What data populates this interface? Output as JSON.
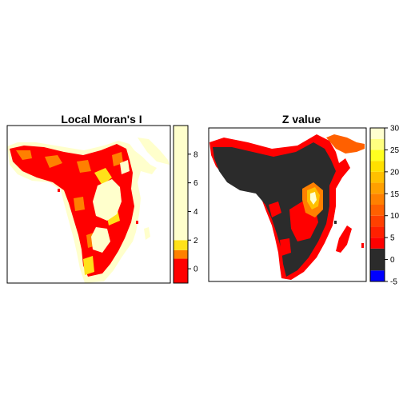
{
  "chart_data": [
    {
      "type": "heatmap",
      "title": "Local Moran's I",
      "legend": {
        "placement": "right",
        "ticks": [
          0,
          2,
          4,
          6,
          8
        ],
        "tick_labels": [
          "0",
          "2",
          "4",
          "6",
          "8"
        ],
        "range": [
          -1,
          10
        ],
        "bands": [
          {
            "from": -1,
            "to": 0.7,
            "color": "#ff0000"
          },
          {
            "from": 0.7,
            "to": 1.3,
            "color": "#ff8000"
          },
          {
            "from": 1.3,
            "to": 2.0,
            "color": "#ffe119"
          },
          {
            "from": 2.0,
            "to": 10,
            "color": "#ffffcc"
          }
        ]
      },
      "palette": {
        "low": "#ff0000",
        "mid_low": "#ff8000",
        "mid": "#ffe119",
        "high": "#ffffcc"
      }
    },
    {
      "type": "heatmap",
      "title": "Z value",
      "legend": {
        "placement": "right",
        "ticks": [
          -5,
          0,
          5,
          10,
          15,
          20,
          25,
          30
        ],
        "tick_labels": [
          "-5",
          "0",
          "5",
          "10",
          "15",
          "20",
          "25",
          "30"
        ],
        "range": [
          -5,
          30
        ],
        "bands": [
          {
            "from": -5,
            "to": -2.5,
            "color": "#0000ff"
          },
          {
            "from": -2.5,
            "to": 2.5,
            "color": "#2b2b2b"
          },
          {
            "from": 2.5,
            "to": 5,
            "color": "#ff0000"
          },
          {
            "from": 5,
            "to": 7.5,
            "color": "#ff2000"
          },
          {
            "from": 7.5,
            "to": 10,
            "color": "#ff4000"
          },
          {
            "from": 10,
            "to": 12.5,
            "color": "#ff6000"
          },
          {
            "from": 12.5,
            "to": 15,
            "color": "#ff8000"
          },
          {
            "from": 15,
            "to": 17.5,
            "color": "#ffa000"
          },
          {
            "from": 17.5,
            "to": 20,
            "color": "#ffc000"
          },
          {
            "from": 20,
            "to": 22.5,
            "color": "#ffe000"
          },
          {
            "from": 22.5,
            "to": 25,
            "color": "#ffff20"
          },
          {
            "from": 25,
            "to": 27.5,
            "color": "#ffff80"
          },
          {
            "from": 27.5,
            "to": 30,
            "color": "#ffffd0"
          }
        ]
      },
      "palette": {
        "negative": "#0000ff",
        "zero": "#2b2b2b",
        "positive_low": "#ff0000",
        "positive_high": "#ffffd0"
      }
    }
  ]
}
